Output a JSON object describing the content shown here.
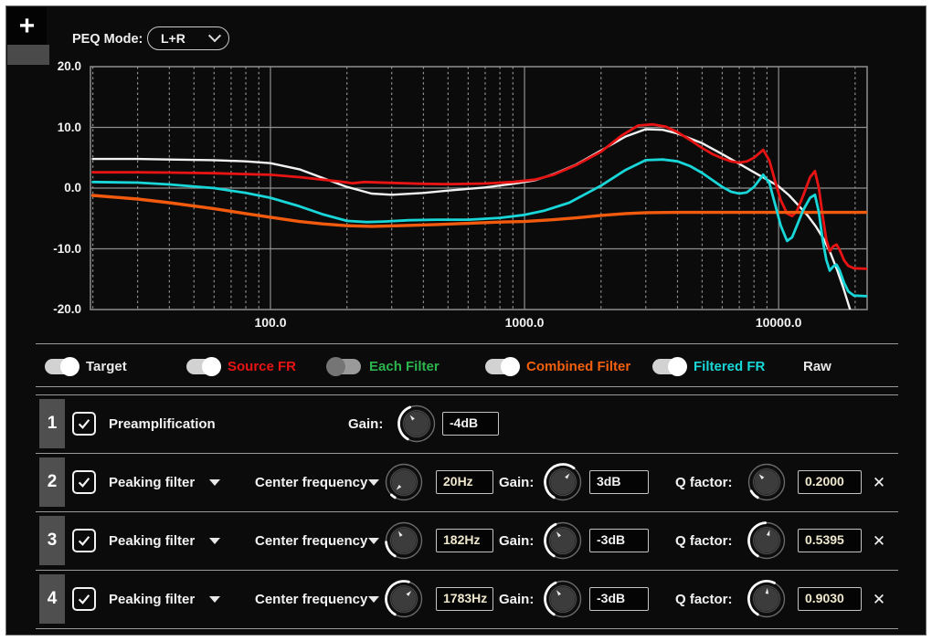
{
  "header": {
    "plus_label": "+",
    "peq_mode_label": "PEQ Mode:",
    "peq_mode_value": "L+R"
  },
  "colors": {
    "background": "#0b0b0b",
    "grid": "#8f8f8f",
    "divider": "#9a9a9a",
    "badge": "#4f4f4f",
    "target": "#f2f2f2",
    "source_fr": "#e81414",
    "each_filter": "#2cb54e",
    "combined_filter": "#f25a0e",
    "filtered_fr": "#19d6d8",
    "cream_value": "#f0e8cd"
  },
  "chart_data": {
    "type": "line",
    "title": "",
    "xlabel": "",
    "ylabel": "",
    "x_axis": {
      "scale": "log",
      "range": [
        19.57,
        22300
      ],
      "ticks": [
        100,
        1000,
        10000
      ],
      "tick_labels": [
        "100.0",
        "1000.0",
        "10000.0"
      ]
    },
    "y_axis": {
      "range": [
        -20,
        20
      ],
      "ticks": [
        20,
        10,
        0,
        -10,
        -20
      ],
      "tick_labels": [
        "20.0",
        "10.0",
        "0.0",
        "-10.0",
        "-20.0"
      ]
    },
    "grid": "on",
    "legend_position": "below-as-toggles",
    "series": [
      {
        "name": "Target",
        "color": "#f2f2f2",
        "width": 2.4,
        "points": [
          [
            20,
            4.8
          ],
          [
            30,
            4.8
          ],
          [
            40,
            4.7
          ],
          [
            60,
            4.6
          ],
          [
            80,
            4.4
          ],
          [
            100,
            4.1
          ],
          [
            130,
            3.1
          ],
          [
            160,
            1.7
          ],
          [
            200,
            0.2
          ],
          [
            250,
            -0.9
          ],
          [
            300,
            -1.1
          ],
          [
            400,
            -0.8
          ],
          [
            500,
            -0.4
          ],
          [
            700,
            0.1
          ],
          [
            900,
            0.7
          ],
          [
            1100,
            1.3
          ],
          [
            1300,
            2.3
          ],
          [
            1600,
            3.9
          ],
          [
            2000,
            6.2
          ],
          [
            2500,
            8.5
          ],
          [
            3000,
            9.7
          ],
          [
            3500,
            9.6
          ],
          [
            4000,
            9.0
          ],
          [
            5000,
            7.4
          ],
          [
            6000,
            5.6
          ],
          [
            7000,
            4.0
          ],
          [
            8000,
            2.6
          ],
          [
            9000,
            1.4
          ],
          [
            10000,
            0.3
          ],
          [
            11000,
            -1.2
          ],
          [
            12000,
            -2.9
          ],
          [
            13000,
            -4.5
          ],
          [
            14000,
            -6.3
          ],
          [
            15000,
            -8.3
          ],
          [
            16000,
            -10.7
          ],
          [
            17000,
            -13.5
          ],
          [
            18000,
            -16.5
          ],
          [
            19000,
            -19.7
          ],
          [
            19800,
            -22
          ]
        ]
      },
      {
        "name": "Source FR",
        "color": "#e81414",
        "width": 2.8,
        "points": [
          [
            20,
            2.6
          ],
          [
            30,
            2.6
          ],
          [
            40,
            2.55
          ],
          [
            60,
            2.45
          ],
          [
            80,
            2.3
          ],
          [
            100,
            2.2
          ],
          [
            130,
            1.8
          ],
          [
            160,
            1.4
          ],
          [
            190,
            1.05
          ],
          [
            210,
            0.8
          ],
          [
            235,
            1.0
          ],
          [
            300,
            0.85
          ],
          [
            400,
            0.7
          ],
          [
            500,
            0.65
          ],
          [
            700,
            0.75
          ],
          [
            900,
            1.0
          ],
          [
            1100,
            1.4
          ],
          [
            1300,
            2.2
          ],
          [
            1600,
            3.8
          ],
          [
            2000,
            6.0
          ],
          [
            2400,
            8.6
          ],
          [
            2800,
            10.3
          ],
          [
            3200,
            10.5
          ],
          [
            3600,
            10.1
          ],
          [
            4000,
            9.2
          ],
          [
            4500,
            7.9
          ],
          [
            5000,
            6.6
          ],
          [
            5500,
            5.6
          ],
          [
            6000,
            4.9
          ],
          [
            6500,
            4.4
          ],
          [
            7000,
            4.2
          ],
          [
            7500,
            4.4
          ],
          [
            8000,
            5.0
          ],
          [
            8700,
            6.3
          ],
          [
            9200,
            4.5
          ],
          [
            9700,
            1.0
          ],
          [
            10200,
            -2.0
          ],
          [
            10800,
            -4.2
          ],
          [
            11300,
            -4.6
          ],
          [
            11800,
            -3.8
          ],
          [
            12500,
            -1.2
          ],
          [
            13300,
            1.8
          ],
          [
            13900,
            2.8
          ],
          [
            14400,
            0.0
          ],
          [
            14900,
            -4.5
          ],
          [
            15400,
            -8.5
          ],
          [
            15900,
            -10.4
          ],
          [
            16400,
            -9.6
          ],
          [
            16900,
            -9.3
          ],
          [
            17400,
            -10.2
          ],
          [
            18100,
            -11.9
          ],
          [
            18800,
            -12.8
          ],
          [
            19800,
            -13.2
          ],
          [
            22300,
            -13.3
          ]
        ]
      },
      {
        "name": "Combined Filter",
        "color": "#f25a0e",
        "width": 3.4,
        "points": [
          [
            20,
            -1.2
          ],
          [
            30,
            -1.8
          ],
          [
            40,
            -2.4
          ],
          [
            60,
            -3.4
          ],
          [
            80,
            -4.2
          ],
          [
            100,
            -4.8
          ],
          [
            130,
            -5.5
          ],
          [
            160,
            -5.9
          ],
          [
            200,
            -6.2
          ],
          [
            250,
            -6.3
          ],
          [
            320,
            -6.2
          ],
          [
            450,
            -6.0
          ],
          [
            600,
            -5.8
          ],
          [
            800,
            -5.6
          ],
          [
            1000,
            -5.5
          ],
          [
            1300,
            -5.2
          ],
          [
            1600,
            -4.9
          ],
          [
            2000,
            -4.5
          ],
          [
            2500,
            -4.2
          ],
          [
            3000,
            -4.05
          ],
          [
            4000,
            -4.0
          ],
          [
            6000,
            -4.0
          ],
          [
            10000,
            -4.0
          ],
          [
            22300,
            -4.0
          ]
        ]
      },
      {
        "name": "Filtered FR",
        "color": "#19d6d8",
        "width": 2.8,
        "points": [
          [
            20,
            1.0
          ],
          [
            30,
            0.9
          ],
          [
            40,
            0.6
          ],
          [
            60,
            0.0
          ],
          [
            80,
            -0.8
          ],
          [
            100,
            -1.6
          ],
          [
            130,
            -3.0
          ],
          [
            160,
            -4.3
          ],
          [
            200,
            -5.4
          ],
          [
            240,
            -5.6
          ],
          [
            280,
            -5.5
          ],
          [
            350,
            -5.3
          ],
          [
            450,
            -5.2
          ],
          [
            600,
            -5.2
          ],
          [
            800,
            -4.9
          ],
          [
            1000,
            -4.4
          ],
          [
            1200,
            -3.7
          ],
          [
            1500,
            -2.4
          ],
          [
            2000,
            0.4
          ],
          [
            2500,
            3.0
          ],
          [
            3000,
            4.6
          ],
          [
            3500,
            4.7
          ],
          [
            4000,
            4.4
          ],
          [
            4500,
            3.6
          ],
          [
            5000,
            2.5
          ],
          [
            5500,
            1.3
          ],
          [
            6000,
            0.2
          ],
          [
            6500,
            -0.6
          ],
          [
            7000,
            -0.9
          ],
          [
            7500,
            -0.7
          ],
          [
            8000,
            0.2
          ],
          [
            8700,
            2.2
          ],
          [
            9200,
            0.8
          ],
          [
            9700,
            -2.8
          ],
          [
            10200,
            -6.2
          ],
          [
            10800,
            -8.7
          ],
          [
            11300,
            -8.1
          ],
          [
            11800,
            -6.2
          ],
          [
            12500,
            -3.6
          ],
          [
            13300,
            -1.6
          ],
          [
            13900,
            -1.1
          ],
          [
            14400,
            -4.0
          ],
          [
            14900,
            -8.5
          ],
          [
            15400,
            -11.8
          ],
          [
            15900,
            -13.6
          ],
          [
            16400,
            -12.9
          ],
          [
            16900,
            -12.6
          ],
          [
            17400,
            -13.6
          ],
          [
            18100,
            -15.6
          ],
          [
            18800,
            -17.0
          ],
          [
            19800,
            -17.7
          ],
          [
            22300,
            -17.8
          ]
        ]
      }
    ]
  },
  "legend": {
    "items": [
      {
        "label": "Target",
        "color": "#e9e9e9",
        "on": true
      },
      {
        "label": "Source FR",
        "color": "#e81414",
        "on": true
      },
      {
        "label": "Each Filter",
        "color": "#2cb54e",
        "on": false
      },
      {
        "label": "Combined Filter",
        "color": "#f2600f",
        "on": true
      },
      {
        "label": "Filtered FR",
        "color": "#19d6d8",
        "on": true
      },
      {
        "label": "Raw",
        "color": "#e9e9e9",
        "on": null
      }
    ]
  },
  "filters": {
    "rows": [
      {
        "index": "1",
        "checked": true,
        "name": "Preamplification",
        "gain": {
          "label": "Gain:",
          "value": "-4dB",
          "knob": {
            "arc_end": -22,
            "pointer": -38
          }
        }
      },
      {
        "index": "2",
        "checked": true,
        "name": "Peaking filter",
        "param": {
          "label": "Center frequency"
        },
        "freq": {
          "value": "20Hz",
          "knob": {
            "arc_end": -136,
            "pointer": -136
          }
        },
        "gain": {
          "label": "Gain:",
          "value": "3dB",
          "knob": {
            "arc_end": 38,
            "pointer": 38
          }
        },
        "q": {
          "label": "Q factor:",
          "value": "0.2000",
          "knob": {
            "arc_end": -120,
            "pointer": -44
          }
        },
        "remove_label": "✕"
      },
      {
        "index": "3",
        "checked": true,
        "name": "Peaking filter",
        "param": {
          "label": "Center frequency"
        },
        "freq": {
          "value": "182Hz",
          "knob": {
            "arc_end": -95,
            "pointer": -30
          }
        },
        "gain": {
          "label": "Gain:",
          "value": "-3dB",
          "knob": {
            "arc_end": -24,
            "pointer": -36
          }
        },
        "q": {
          "label": "Q factor:",
          "value": "0.5395",
          "knob": {
            "arc_end": -4,
            "pointer": 16
          }
        },
        "remove_label": "✕"
      },
      {
        "index": "4",
        "checked": true,
        "name": "Peaking filter",
        "param": {
          "label": "Center frequency"
        },
        "freq": {
          "value": "1783Hz",
          "knob": {
            "arc_end": 16,
            "pointer": 42
          }
        },
        "gain": {
          "label": "Gain:",
          "value": "-3dB",
          "knob": {
            "arc_end": -24,
            "pointer": -36
          }
        },
        "q": {
          "label": "Q factor:",
          "value": "0.9030",
          "knob": {
            "arc_end": 26,
            "pointer": 4
          }
        },
        "remove_label": "✕"
      }
    ]
  }
}
